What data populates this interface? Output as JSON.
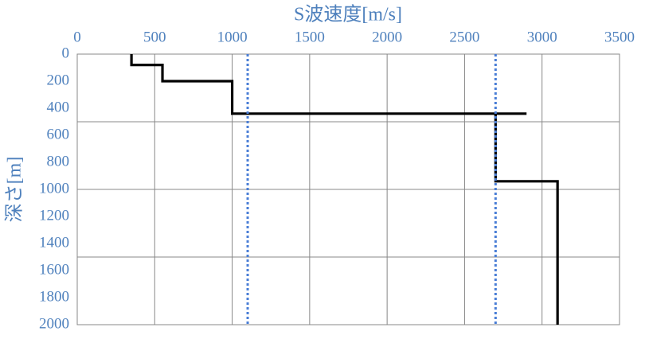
{
  "chart_data": {
    "type": "line",
    "xlabel": "S波速度[m/s]",
    "ylabel": "深さ[m]",
    "xlim": [
      0,
      3500
    ],
    "xticks": [
      0,
      500,
      1000,
      1500,
      2000,
      2500,
      3000,
      3500
    ],
    "ylim": [
      0,
      2000
    ],
    "yticks": [
      0,
      200,
      400,
      600,
      800,
      1000,
      1200,
      1400,
      1600,
      1800,
      2000
    ],
    "ygrid": [
      500,
      1000,
      1500
    ],
    "xgrid": true,
    "y_inverted": true,
    "x_axis_top": true,
    "series": [
      {
        "color": "#000000",
        "dash": "solid",
        "x": [
          350,
          350,
          550,
          550,
          1000,
          1000,
          2900,
          null,
          2700,
          2700,
          3100,
          3100
        ],
        "values": [
          0,
          80,
          80,
          200,
          200,
          440,
          440,
          null,
          440,
          940,
          940,
          2000
        ]
      },
      {
        "color": "#4a7ed6",
        "dash": "dotted",
        "x": [
          1100,
          1100
        ],
        "values": [
          0,
          2000
        ]
      },
      {
        "color": "#4a7ed6",
        "dash": "dotted",
        "x": [
          2700,
          2700
        ],
        "values": [
          0,
          2000
        ]
      }
    ]
  }
}
